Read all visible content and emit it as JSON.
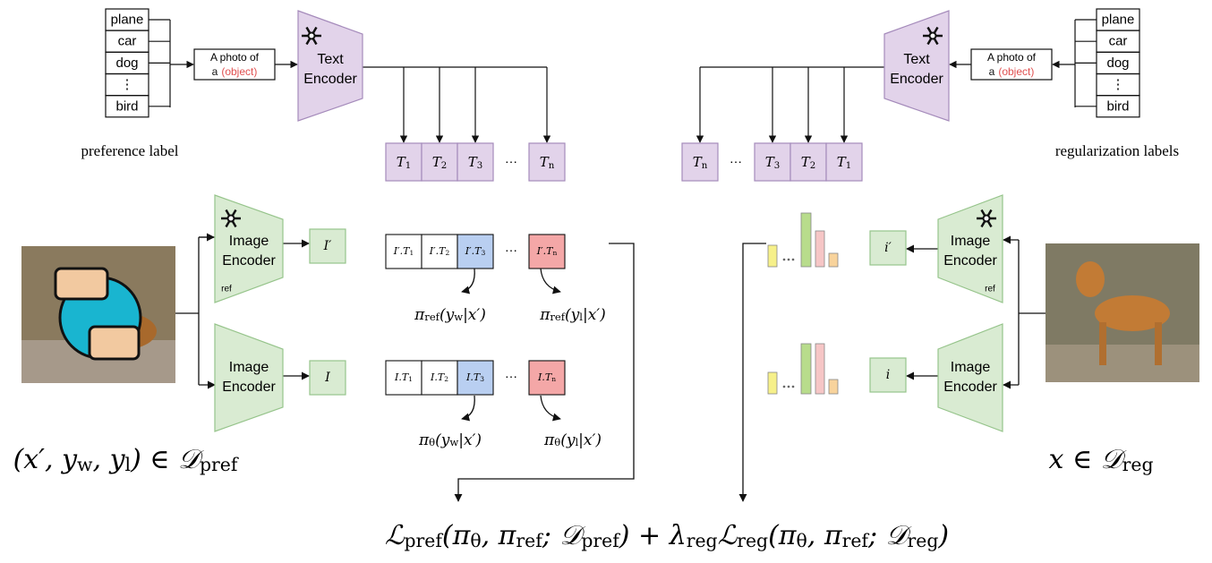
{
  "left_text_branch": {
    "classes": [
      "plane",
      "car",
      "dog",
      "⋮",
      "bird"
    ],
    "prompt": [
      "A photo of",
      "a"
    ],
    "prompt_object": "(object)",
    "encoder": [
      "Text",
      "Encoder"
    ],
    "caption": "preference label",
    "tokens": [
      [
        {
          "t": "T"
        },
        {
          "sub": "1"
        }
      ],
      [
        {
          "t": "T"
        },
        {
          "sub": "2"
        }
      ],
      [
        {
          "t": "T"
        },
        {
          "sub": "3"
        }
      ],
      "⋯",
      [
        {
          "t": "T"
        },
        {
          "sub": "n"
        }
      ]
    ]
  },
  "right_text_branch": {
    "classes": [
      "plane",
      "car",
      "dog",
      "⋮",
      "bird"
    ],
    "prompt": [
      "A photo of",
      "a"
    ],
    "prompt_object": "(object)",
    "encoder": [
      "Text",
      "Encoder"
    ],
    "caption": "regularization labels",
    "tokens": [
      [
        {
          "t": "T"
        },
        {
          "sub": "n"
        }
      ],
      "⋯",
      [
        {
          "t": "T"
        },
        {
          "sub": "3"
        }
      ],
      [
        {
          "t": "T"
        },
        {
          "sub": "2"
        }
      ],
      [
        {
          "t": "T"
        },
        {
          "sub": "1"
        }
      ]
    ]
  },
  "left_image_branch": {
    "ref_encoder": [
      "Image",
      "Encoder"
    ],
    "ref_tag": "ref",
    "encoder": [
      "Image",
      "Encoder"
    ],
    "ref_feature": "I′",
    "feature": "I",
    "ref_scores": [
      [
        {
          "t": "I′.T"
        },
        {
          "sub": "1"
        }
      ],
      [
        {
          "t": "I′.T"
        },
        {
          "sub": "2"
        }
      ],
      [
        {
          "t": "I′.T"
        },
        {
          "sub": "3"
        }
      ],
      "⋯",
      [
        {
          "t": "I′.T"
        },
        {
          "sub": "n"
        }
      ]
    ],
    "scores": [
      [
        {
          "t": "I.T"
        },
        {
          "sub": "1"
        }
      ],
      [
        {
          "t": "I.T"
        },
        {
          "sub": "2"
        }
      ],
      [
        {
          "t": "I.T"
        },
        {
          "sub": "3"
        }
      ],
      "⋯",
      [
        {
          "t": "I.T"
        },
        {
          "sub": "n"
        }
      ]
    ],
    "ref_probs": [
      [
        {
          "t": "π"
        },
        {
          "sub": "ref"
        },
        {
          "t": "(y"
        },
        {
          "sub": "w"
        },
        {
          "t": "|x′)"
        }
      ],
      [
        {
          "t": "π"
        },
        {
          "sub": "ref"
        },
        {
          "t": "(y"
        },
        {
          "sub": "l"
        },
        {
          "t": "|x′)"
        }
      ]
    ],
    "probs": [
      [
        {
          "t": "π"
        },
        {
          "sub": "θ"
        },
        {
          "t": "(y"
        },
        {
          "sub": "w"
        },
        {
          "t": "|x′)"
        }
      ],
      [
        {
          "t": "π"
        },
        {
          "sub": "θ"
        },
        {
          "t": "(y"
        },
        {
          "sub": "l"
        },
        {
          "t": "|x′)"
        }
      ]
    ],
    "sample": [
      {
        "t": "(x′, y"
      },
      {
        "sub": "w"
      },
      {
        "t": ", y"
      },
      {
        "sub": "l"
      },
      {
        "t": ") ∈ 𝒟"
      },
      {
        "sub": "pref"
      }
    ]
  },
  "right_image_branch": {
    "ref_encoder": [
      "Image",
      "Encoder"
    ],
    "ref_tag": "ref",
    "encoder": [
      "Image",
      "Encoder"
    ],
    "ref_feature": "i′",
    "feature": "i",
    "sample": [
      {
        "t": "x ∈ 𝒟"
      },
      {
        "sub": "reg"
      }
    ]
  },
  "objective": [
    {
      "t": "ℒ"
    },
    {
      "sub": "pref"
    },
    {
      "t": "(π"
    },
    {
      "sub": "θ"
    },
    {
      "t": ", π"
    },
    {
      "sub": "ref"
    },
    {
      "t": "; 𝒟"
    },
    {
      "sub": "pref"
    },
    {
      "t": ") + λ"
    },
    {
      "sub": "reg"
    },
    {
      "t": "ℒ"
    },
    {
      "sub": "reg"
    },
    {
      "t": "(π"
    },
    {
      "sub": "θ"
    },
    {
      "t": ", π"
    },
    {
      "sub": "ref"
    },
    {
      "t": "; 𝒟"
    },
    {
      "sub": "reg"
    },
    {
      "t": ")"
    }
  ]
}
